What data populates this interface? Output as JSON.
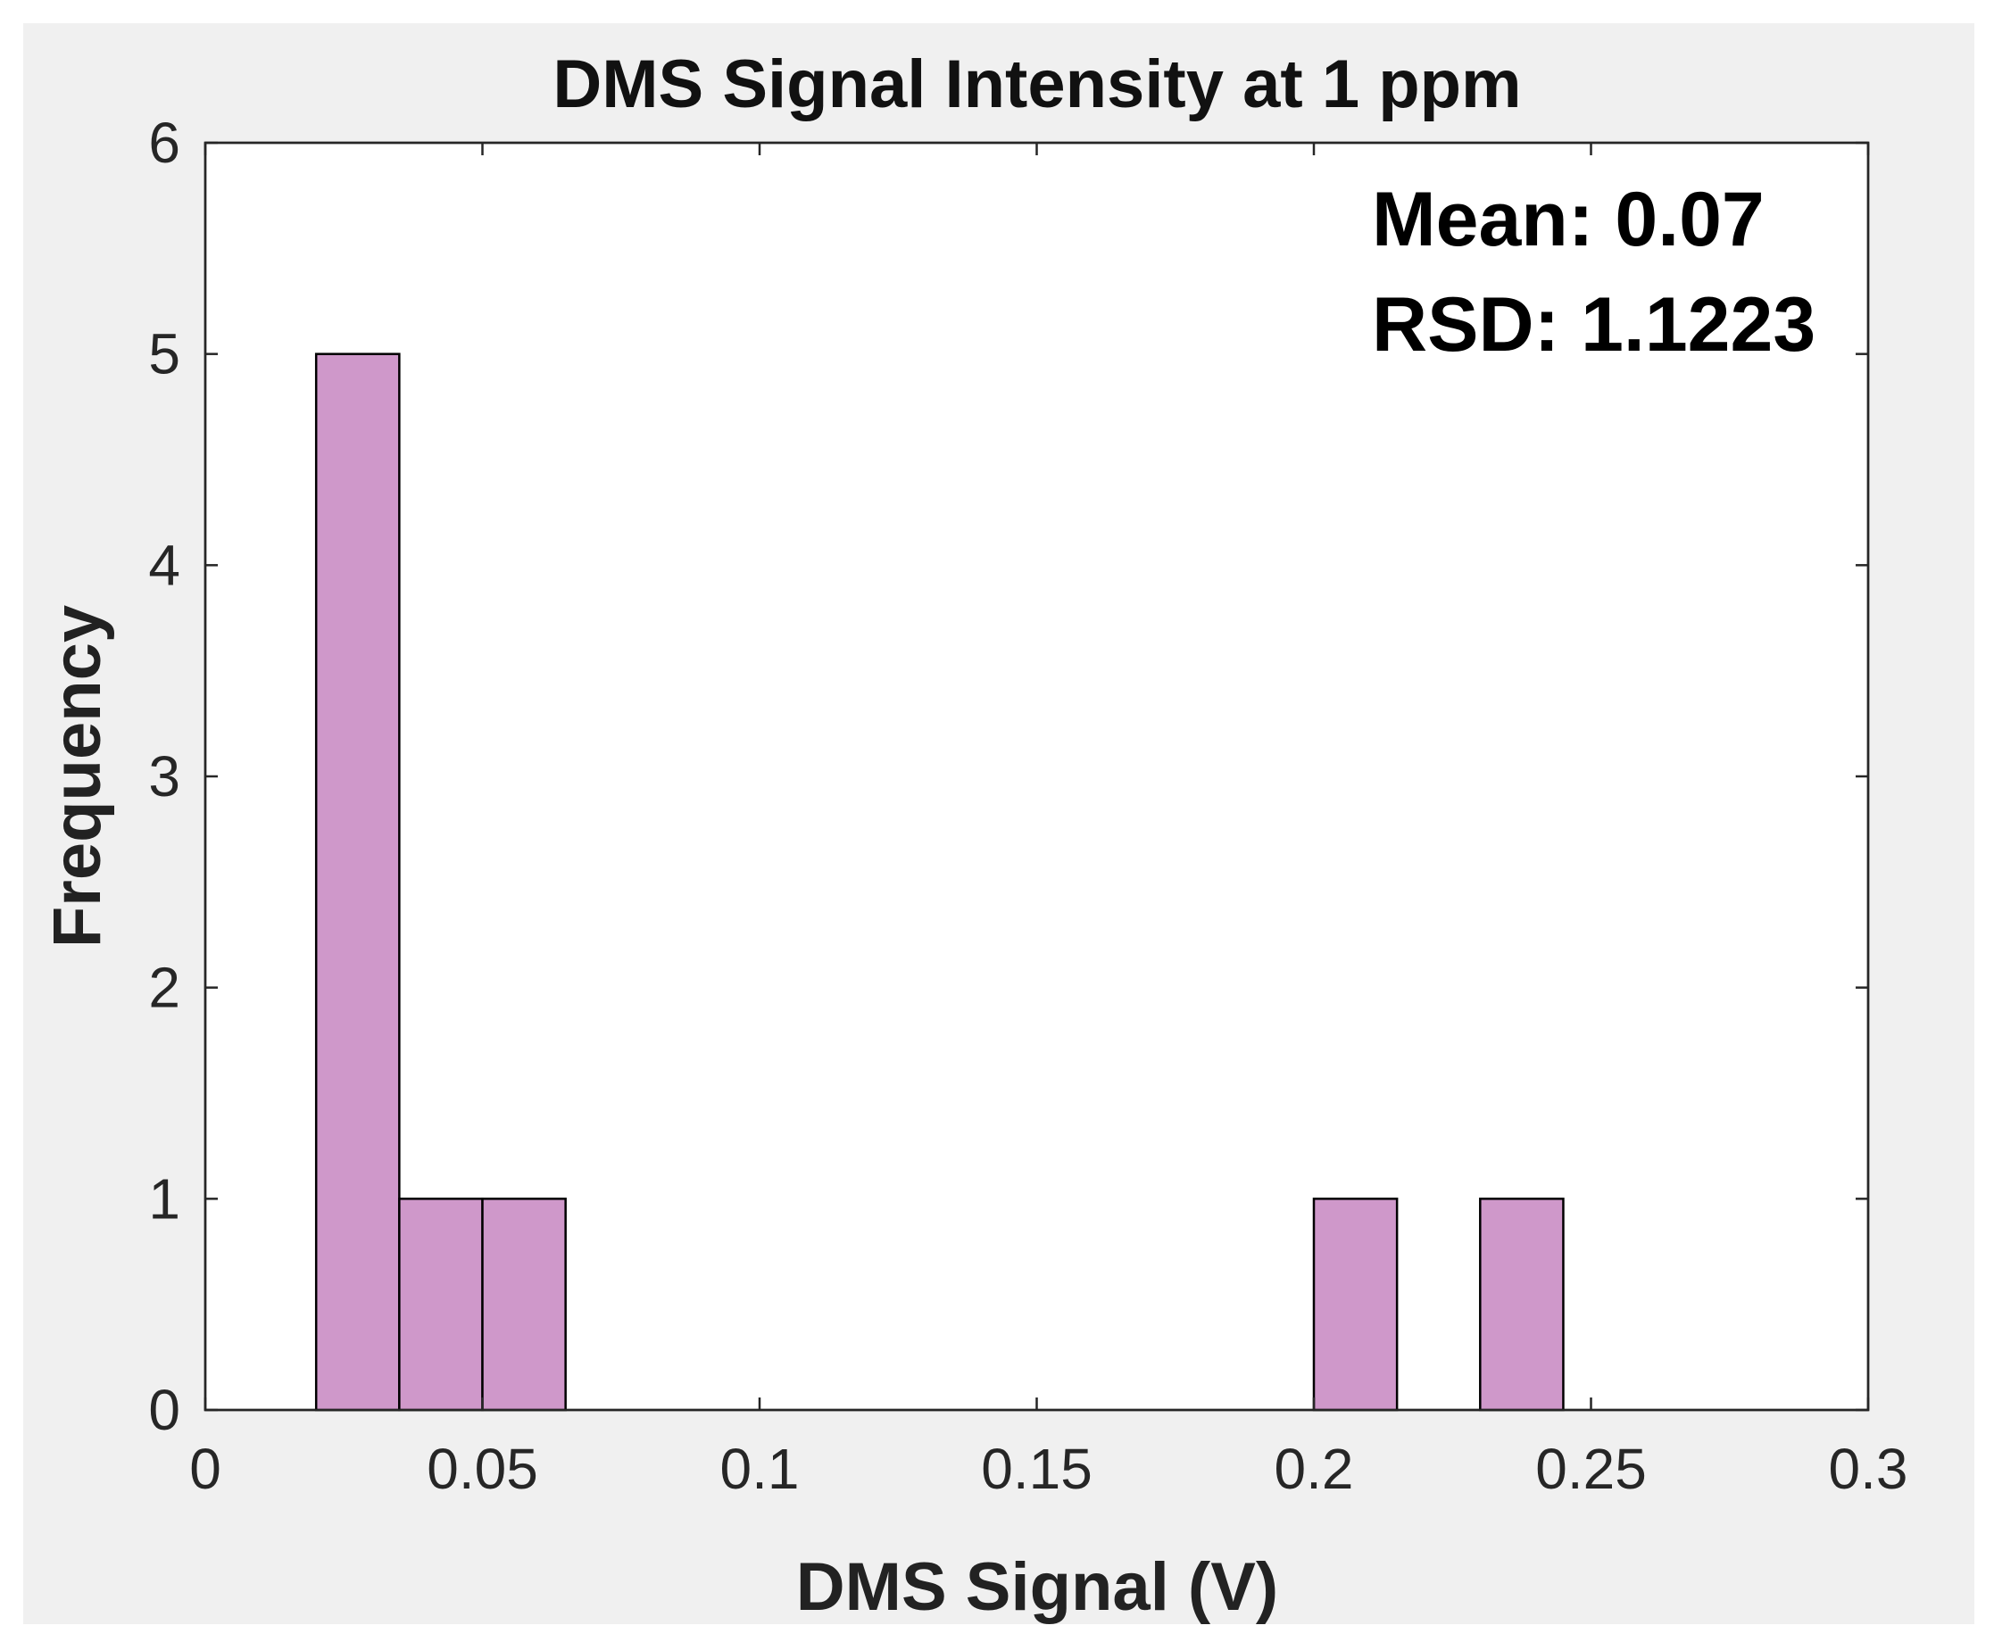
{
  "chart_data": {
    "type": "bar",
    "title": "DMS Signal Intensity at 1 ppm",
    "xlabel": "DMS Signal (V)",
    "ylabel": "Frequency",
    "xlim": [
      0,
      0.3
    ],
    "ylim": [
      0,
      6
    ],
    "xticks": [
      "0",
      "0.05",
      "0.1",
      "0.15",
      "0.2",
      "0.25",
      "0.3"
    ],
    "yticks": [
      "0",
      "1",
      "2",
      "3",
      "4",
      "5",
      "6"
    ],
    "bins": [
      {
        "x_start": 0.02,
        "x_end": 0.035,
        "count": 5
      },
      {
        "x_start": 0.035,
        "x_end": 0.05,
        "count": 1
      },
      {
        "x_start": 0.05,
        "x_end": 0.065,
        "count": 1
      },
      {
        "x_start": 0.2,
        "x_end": 0.215,
        "count": 1
      },
      {
        "x_start": 0.23,
        "x_end": 0.245,
        "count": 1
      }
    ],
    "annotations": [
      "Mean: 0.07",
      "RSD: 1.1223"
    ],
    "grid": false,
    "bar_color": "#cf98ca",
    "bar_edge_color": "#000000",
    "figure_background": "#f0f0f0",
    "axes_background": "#ffffff"
  }
}
